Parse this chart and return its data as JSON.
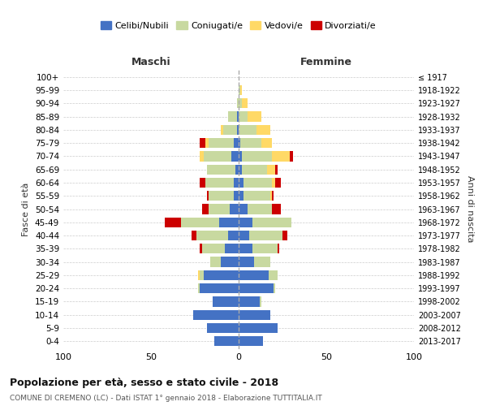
{
  "age_groups": [
    "100+",
    "95-99",
    "90-94",
    "85-89",
    "80-84",
    "75-79",
    "70-74",
    "65-69",
    "60-64",
    "55-59",
    "50-54",
    "45-49",
    "40-44",
    "35-39",
    "30-34",
    "25-29",
    "20-24",
    "15-19",
    "10-14",
    "5-9",
    "0-4"
  ],
  "birth_years": [
    "≤ 1917",
    "1918-1922",
    "1923-1927",
    "1928-1932",
    "1933-1937",
    "1938-1942",
    "1943-1947",
    "1948-1952",
    "1953-1957",
    "1958-1962",
    "1963-1967",
    "1968-1972",
    "1973-1977",
    "1978-1982",
    "1983-1987",
    "1988-1992",
    "1993-1997",
    "1998-2002",
    "2003-2007",
    "2008-2012",
    "2013-2017"
  ],
  "males": {
    "celibi": [
      0,
      0,
      0,
      1,
      1,
      3,
      4,
      2,
      3,
      3,
      5,
      11,
      6,
      8,
      10,
      20,
      22,
      15,
      26,
      18,
      14
    ],
    "coniugati": [
      0,
      0,
      1,
      5,
      8,
      14,
      16,
      16,
      16,
      14,
      12,
      22,
      18,
      13,
      6,
      2,
      1,
      0,
      0,
      0,
      0
    ],
    "vedovi": [
      0,
      0,
      0,
      0,
      1,
      2,
      2,
      0,
      0,
      0,
      0,
      0,
      0,
      0,
      0,
      1,
      0,
      0,
      0,
      0,
      0
    ],
    "divorziati": [
      0,
      0,
      0,
      0,
      0,
      3,
      0,
      0,
      3,
      1,
      4,
      9,
      3,
      1,
      0,
      0,
      0,
      0,
      0,
      0,
      0
    ]
  },
  "females": {
    "nubili": [
      0,
      0,
      0,
      0,
      0,
      1,
      2,
      2,
      3,
      3,
      5,
      8,
      6,
      8,
      9,
      17,
      20,
      12,
      18,
      22,
      14
    ],
    "coniugate": [
      0,
      1,
      2,
      5,
      10,
      12,
      17,
      14,
      16,
      15,
      14,
      22,
      19,
      14,
      9,
      5,
      1,
      1,
      0,
      0,
      0
    ],
    "vedove": [
      0,
      1,
      3,
      8,
      8,
      6,
      10,
      5,
      2,
      1,
      0,
      0,
      0,
      0,
      0,
      0,
      0,
      0,
      0,
      0,
      0
    ],
    "divorziate": [
      0,
      0,
      0,
      0,
      0,
      0,
      2,
      1,
      3,
      1,
      5,
      0,
      3,
      1,
      0,
      0,
      0,
      0,
      0,
      0,
      0
    ]
  },
  "colors": {
    "celibi_nubili": "#4472C4",
    "coniugati": "#C8D9A0",
    "vedovi": "#FFD966",
    "divorziati": "#CC0000"
  },
  "xlim": 100,
  "title": "Popolazione per età, sesso e stato civile - 2018",
  "subtitle": "COMUNE DI CREMENO (LC) - Dati ISTAT 1° gennaio 2018 - Elaborazione TUTTITALIA.IT",
  "ylabel": "Fasce di età",
  "ylabel_right": "Anni di nascita",
  "label_maschi": "Maschi",
  "label_femmine": "Femmine",
  "legend_labels": [
    "Celibi/Nubili",
    "Coniugati/e",
    "Vedovi/e",
    "Divorziati/e"
  ],
  "bg_color": "#FFFFFF",
  "grid_color": "#CCCCCC"
}
